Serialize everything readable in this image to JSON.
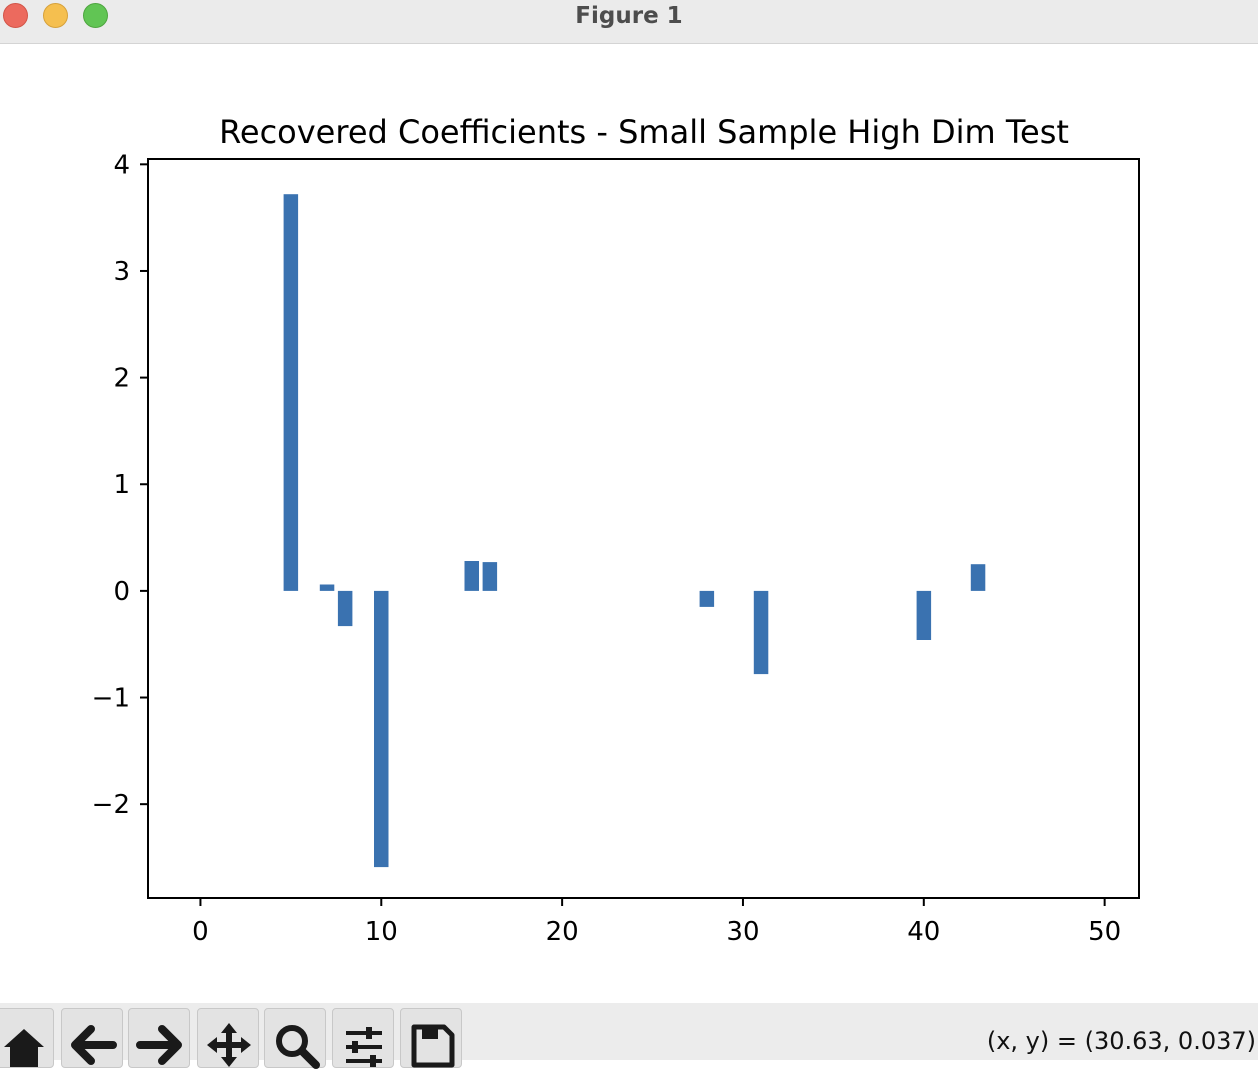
{
  "window": {
    "title": "Figure 1"
  },
  "toolbar": {
    "buttons": [
      {
        "name": "home-button",
        "icon": "home-icon"
      },
      {
        "name": "back-button",
        "icon": "arrow-left-icon"
      },
      {
        "name": "forward-button",
        "icon": "arrow-right-icon"
      },
      {
        "name": "pan-button",
        "icon": "move-icon"
      },
      {
        "name": "zoom-button",
        "icon": "magnifier-icon"
      },
      {
        "name": "configure-subplots-button",
        "icon": "sliders-icon"
      },
      {
        "name": "save-button",
        "icon": "save-icon"
      }
    ],
    "coords": "(x, y) = (30.63, 0.037)"
  },
  "colors": {
    "bar": "#3a72b0",
    "axes": "#000000"
  },
  "chart_data": {
    "type": "bar",
    "title": "Recovered Coefficients - Small Sample High Dim Test",
    "xlabel": "",
    "ylabel": "",
    "xlim": [
      -2.9,
      51.9
    ],
    "ylim": [
      -2.88,
      4.05
    ],
    "xticks": [
      0,
      10,
      20,
      30,
      40,
      50
    ],
    "xtick_labels": [
      "0",
      "10",
      "20",
      "30",
      "40",
      "50"
    ],
    "yticks": [
      -2,
      -1,
      0,
      1,
      2,
      3,
      4
    ],
    "ytick_labels": [
      "−2",
      "−1",
      "0",
      "1",
      "2",
      "3",
      "4"
    ],
    "bar_width": 0.8,
    "x": [
      5,
      7,
      8,
      10,
      15,
      16,
      28,
      31,
      40,
      43
    ],
    "values": [
      3.72,
      0.06,
      -0.33,
      -2.59,
      0.28,
      0.27,
      -0.15,
      -0.78,
      -0.46,
      0.25
    ],
    "grid": false
  }
}
